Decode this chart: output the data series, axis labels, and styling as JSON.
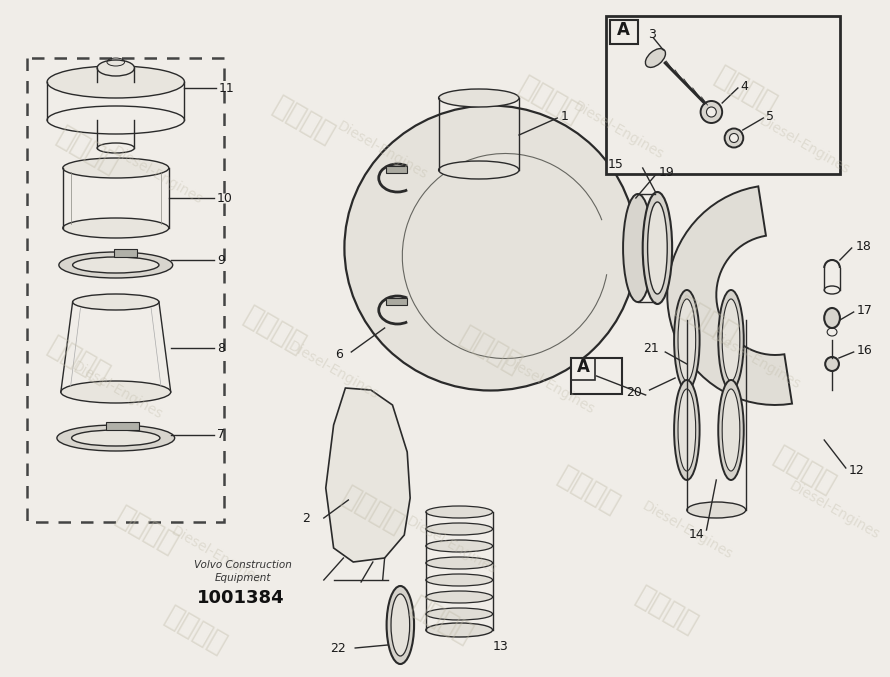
{
  "bg_color": "#f0ede8",
  "title_company": "Volvo Construction",
  "title_equipment": "Equipment",
  "part_number": "1001384",
  "line_color": "#2a2a2a",
  "watermark_cn": "柴发动力",
  "watermark_en": "Diesel-Engines",
  "box_A_label": "A"
}
